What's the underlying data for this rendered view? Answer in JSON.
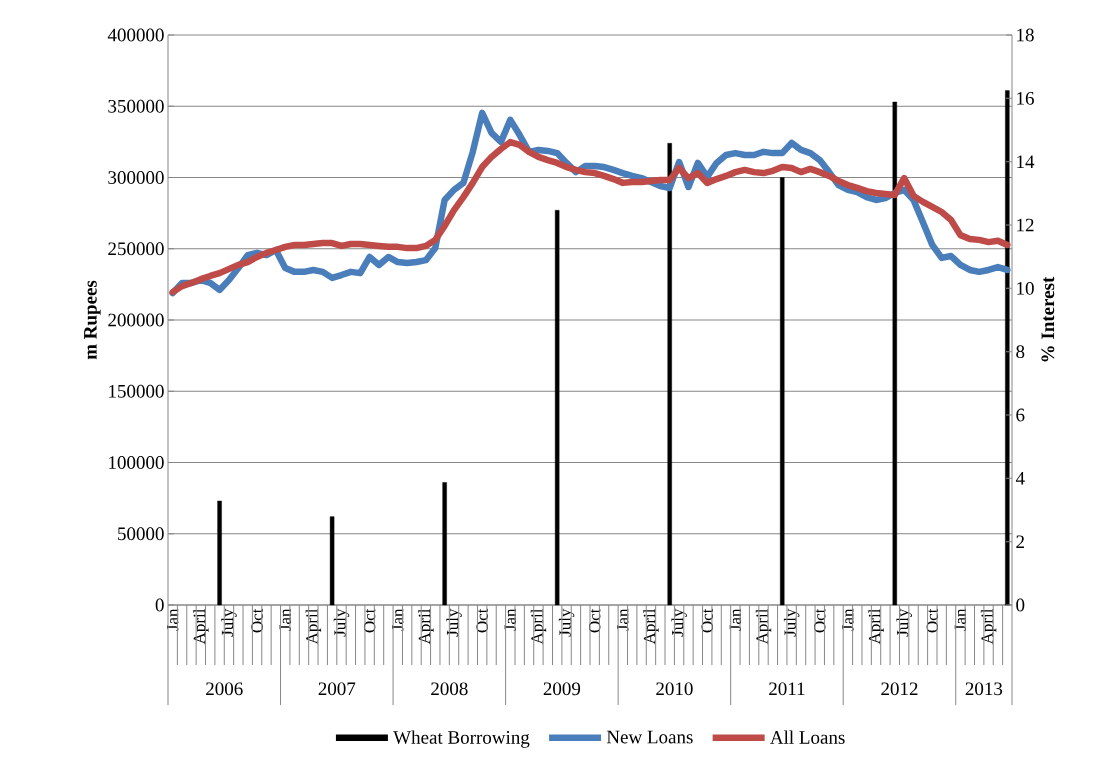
{
  "chart_data": {
    "type": "bar",
    "ylabel": "m Rupees",
    "y2label": "% Interest",
    "categories": [
      "Jan",
      null,
      null,
      "April",
      null,
      null,
      "July",
      null,
      null,
      "Oct",
      null,
      null,
      "Jan",
      null,
      null,
      "April",
      null,
      null,
      "July",
      null,
      null,
      "Oct",
      null,
      null,
      "Jan",
      null,
      null,
      "April",
      null,
      null,
      "July",
      null,
      null,
      "Oct",
      null,
      null,
      "Jan",
      null,
      null,
      "April",
      null,
      null,
      "July",
      null,
      null,
      "Oct",
      null,
      null,
      "Jan",
      null,
      null,
      "April",
      null,
      null,
      "July",
      null,
      null,
      "Oct",
      null,
      null,
      "Jan",
      null,
      null,
      "April",
      null,
      null,
      "July",
      null,
      null,
      "Oct",
      null,
      null,
      "Jan",
      null,
      null,
      "April",
      null,
      null,
      "July",
      null,
      null,
      "Oct",
      null,
      null,
      "Jan",
      null,
      null,
      "April",
      null,
      null
    ],
    "annotations": [
      "2006",
      "2007",
      "2008",
      "2009",
      "2010",
      "2011",
      "2012",
      "2013"
    ],
    "ylim": [
      0,
      400000
    ],
    "yticks": [
      0,
      50000,
      100000,
      150000,
      200000,
      250000,
      300000,
      350000,
      400000
    ],
    "y2lim": [
      0,
      18
    ],
    "y2ticks": [
      0,
      2,
      4,
      6,
      8,
      10,
      12,
      14,
      16,
      18
    ],
    "grid": "y",
    "legend": "bottom",
    "marker": "none",
    "series": [
      {
        "name": "Wheat Borrowing",
        "color": "#000000",
        "values": [
          null,
          null,
          null,
          null,
          null,
          73000,
          null,
          null,
          null,
          null,
          null,
          null,
          null,
          null,
          null,
          null,
          null,
          62000,
          null,
          null,
          null,
          null,
          null,
          null,
          null,
          null,
          null,
          null,
          null,
          86000,
          null,
          null,
          null,
          null,
          null,
          null,
          null,
          null,
          null,
          null,
          null,
          277000,
          null,
          null,
          null,
          null,
          null,
          null,
          null,
          null,
          null,
          null,
          null,
          324000,
          null,
          null,
          null,
          null,
          null,
          null,
          null,
          null,
          null,
          null,
          null,
          300000,
          null,
          null,
          null,
          null,
          null,
          null,
          null,
          null,
          null,
          null,
          null,
          353000,
          null,
          null,
          null,
          null,
          null,
          null,
          null,
          null,
          null,
          null,
          null,
          361000
        ]
      },
      {
        "name": "New Loans",
        "type": "line",
        "axis": "y2",
        "color": "#4a7ebb",
        "values": [
          9.85,
          10.17,
          10.17,
          10.26,
          10.17,
          9.95,
          10.26,
          10.64,
          11.05,
          11.12,
          11.05,
          11.21,
          10.64,
          10.52,
          10.52,
          10.58,
          10.52,
          10.33,
          10.42,
          10.52,
          10.48,
          10.99,
          10.74,
          10.99,
          10.83,
          10.8,
          10.83,
          10.89,
          11.27,
          12.79,
          13.11,
          13.33,
          14.31,
          15.54,
          14.91,
          14.62,
          15.32,
          14.84,
          14.31,
          14.37,
          14.34,
          14.27,
          13.96,
          13.67,
          13.86,
          13.86,
          13.83,
          13.74,
          13.64,
          13.55,
          13.48,
          13.36,
          13.23,
          13.17,
          13.99,
          13.2,
          13.96,
          13.52,
          13.96,
          14.21,
          14.27,
          14.21,
          14.21,
          14.31,
          14.27,
          14.27,
          14.59,
          14.37,
          14.27,
          14.05,
          13.67,
          13.26,
          13.11,
          13.04,
          12.88,
          12.79,
          12.85,
          13.01,
          13.11,
          12.79,
          12.09,
          11.37,
          10.96,
          11.02,
          10.74,
          10.58,
          10.52,
          10.58,
          10.67,
          10.58
        ]
      },
      {
        "name": "All Loans",
        "type": "line",
        "axis": "y2",
        "color": "#be4b48",
        "values": [
          9.88,
          10.07,
          10.17,
          10.29,
          10.39,
          10.48,
          10.61,
          10.74,
          10.83,
          10.99,
          11.12,
          11.21,
          11.31,
          11.37,
          11.37,
          11.4,
          11.43,
          11.43,
          11.34,
          11.4,
          11.4,
          11.37,
          11.34,
          11.31,
          11.31,
          11.27,
          11.27,
          11.34,
          11.53,
          11.97,
          12.47,
          12.88,
          13.33,
          13.83,
          14.15,
          14.4,
          14.62,
          14.53,
          14.31,
          14.15,
          14.05,
          13.96,
          13.83,
          13.74,
          13.67,
          13.64,
          13.55,
          13.45,
          13.33,
          13.36,
          13.36,
          13.39,
          13.42,
          13.42,
          13.8,
          13.48,
          13.64,
          13.33,
          13.45,
          13.55,
          13.67,
          13.74,
          13.67,
          13.64,
          13.71,
          13.83,
          13.8,
          13.67,
          13.77,
          13.67,
          13.55,
          13.39,
          13.26,
          13.17,
          13.07,
          13.01,
          12.98,
          12.95,
          13.48,
          12.92,
          12.73,
          12.57,
          12.41,
          12.16,
          11.68,
          11.56,
          11.53,
          11.46,
          11.5,
          11.37
        ]
      }
    ]
  }
}
